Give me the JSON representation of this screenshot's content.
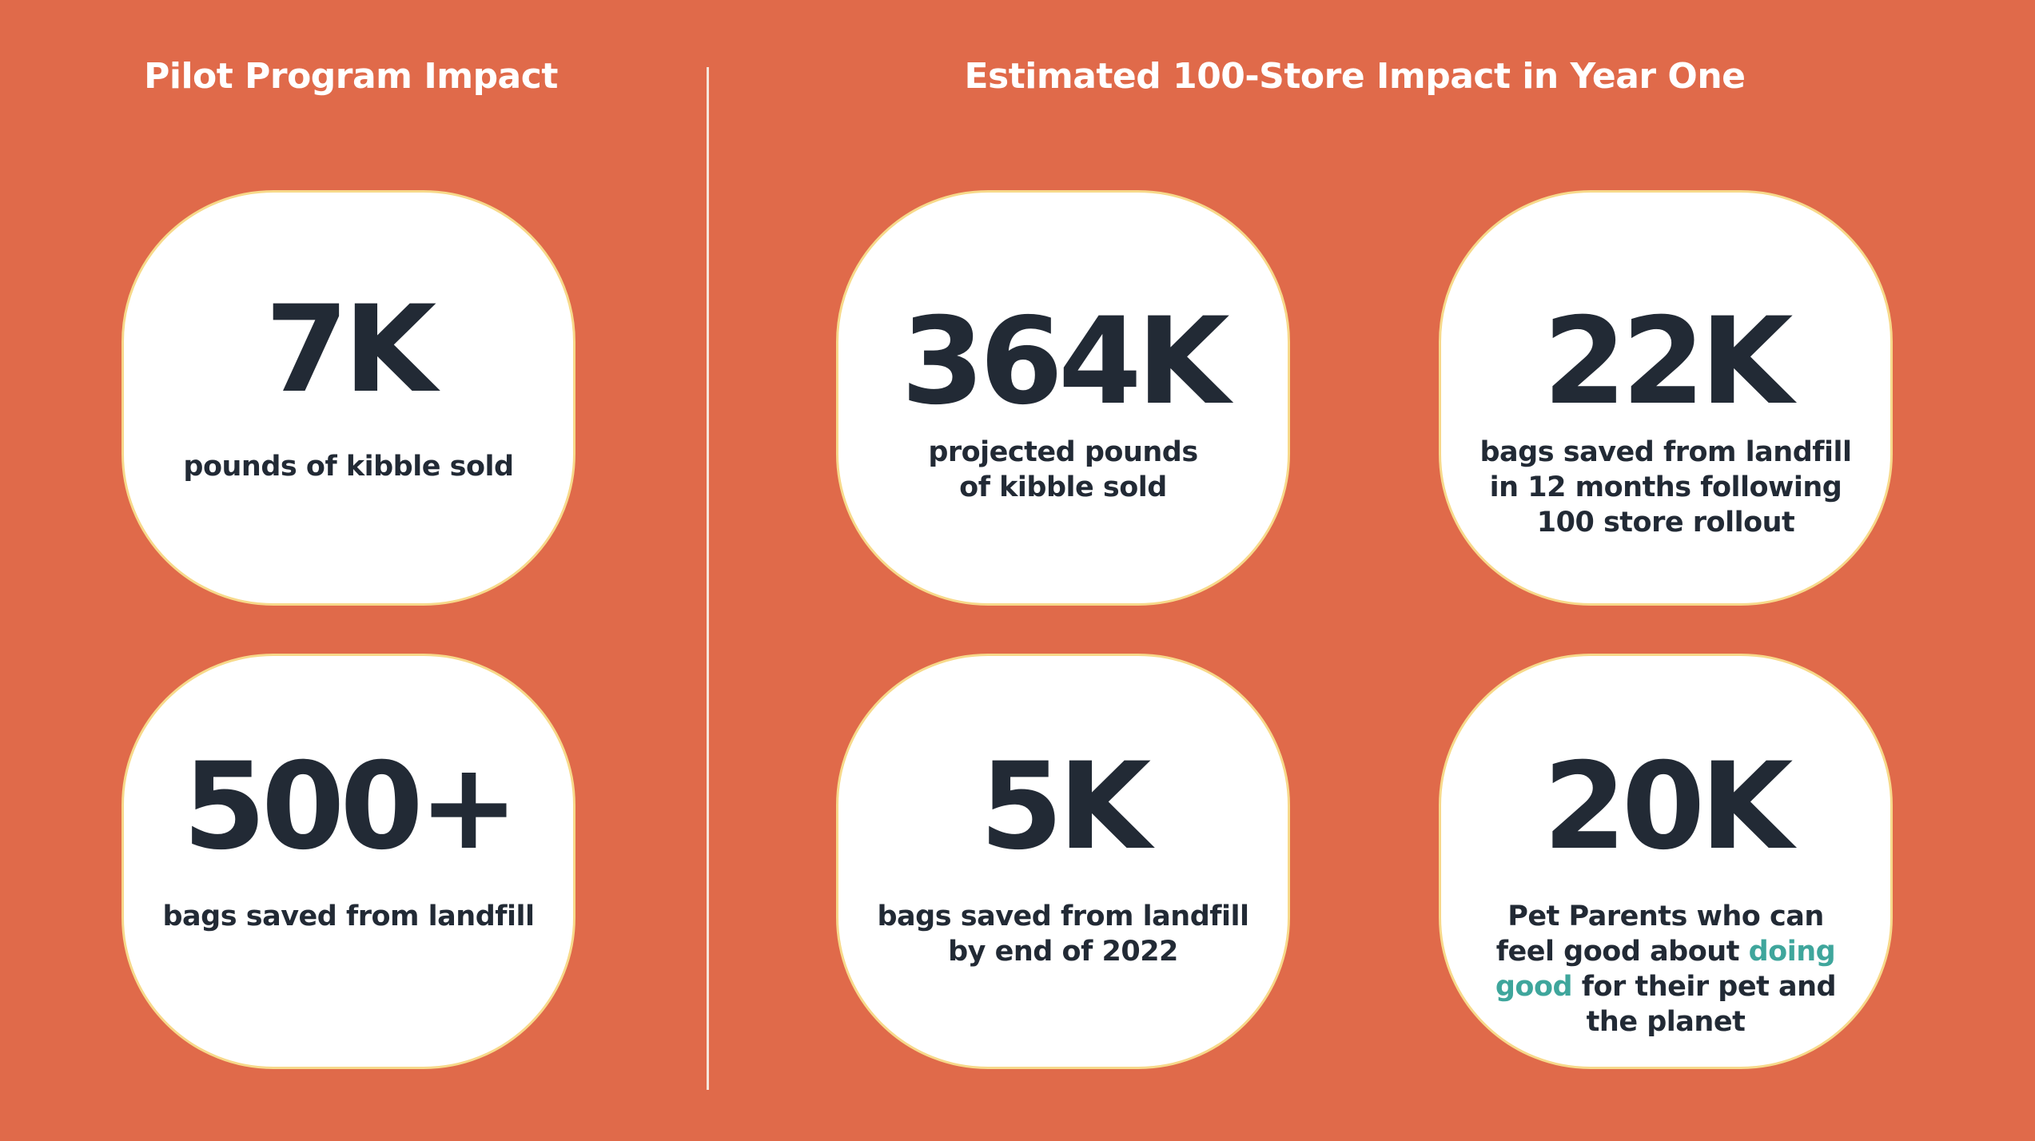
{
  "left_section": {
    "title": "Pilot Program Impact"
  },
  "right_section": {
    "title": "Estimated 100-Store Impact in Year One"
  },
  "cards": {
    "pilot_kibble": {
      "value": "7K",
      "lines": [
        "pounds of kibble sold"
      ]
    },
    "pilot_bags": {
      "value": "500+",
      "lines": [
        "bags saved from landfill"
      ]
    },
    "projected_kibble": {
      "value": "364K",
      "lines": [
        "projected pounds",
        "of kibble sold"
      ]
    },
    "projected_bags_12mo": {
      "value": "22K",
      "lines": [
        "bags saved from landfill",
        "in 12 months following",
        "100 store rollout"
      ]
    },
    "bags_2022": {
      "value": "5K",
      "lines": [
        "bags saved from landfill",
        "by end of 2022"
      ]
    },
    "pet_parents": {
      "value": "20K",
      "line1": "Pet Parents who can",
      "line2_pre": "feel good about ",
      "accent_1": "doing",
      "accent_2": "good",
      "line3_post": " for their pet and",
      "line4": "the planet"
    }
  },
  "colors": {
    "background": "#E06A4A",
    "card": "#FFFFFF",
    "card_border": "#F7D98A",
    "text_dark": "#222A35",
    "accent_teal": "#3FA69C",
    "title_text": "#FFFFFF"
  }
}
